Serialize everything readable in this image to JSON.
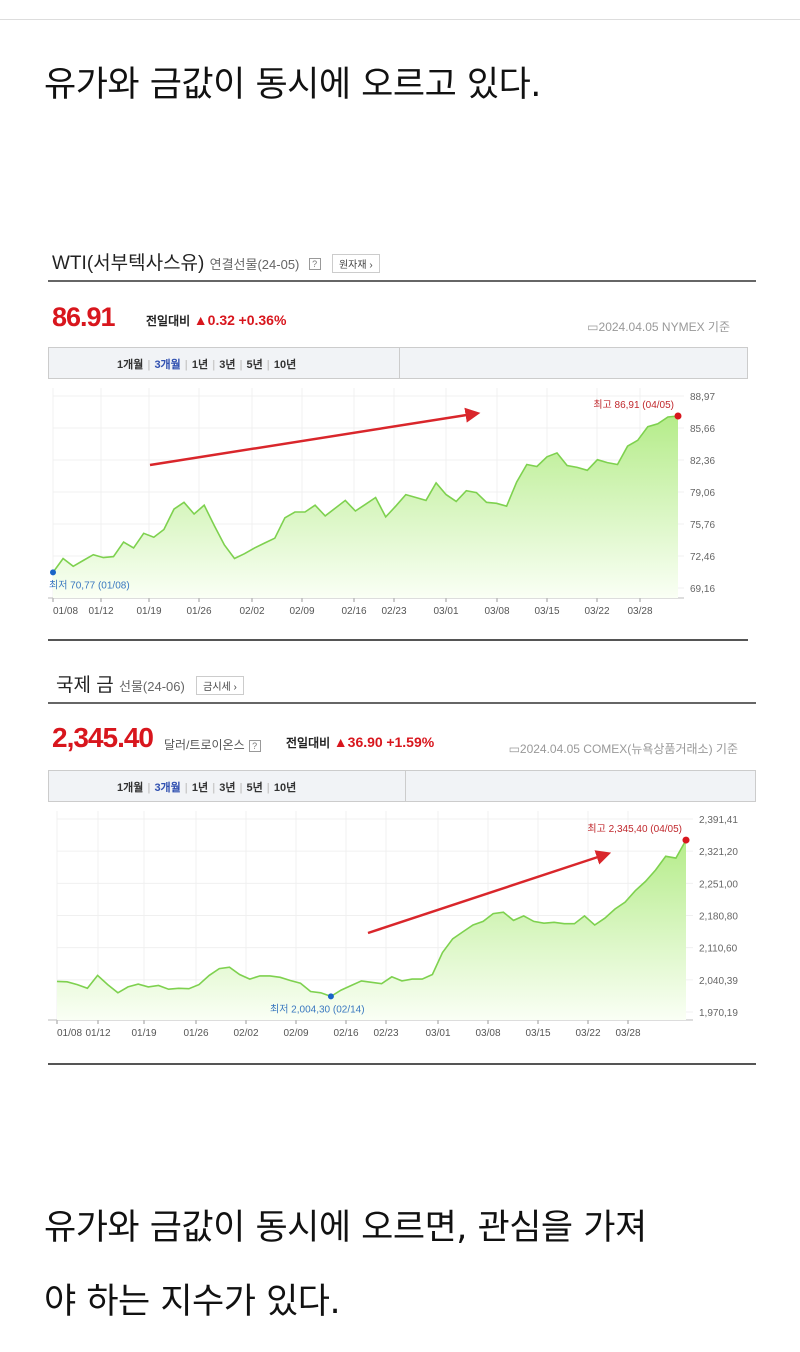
{
  "paragraphs": [
    "유가와 금값이 동시에 오르고 있다.",
    "유가와 금값이 동시에 오르면, 관심을 가져",
    "야 하는 지수가 있다."
  ],
  "wti": {
    "title": "WTI(서부텍사스유)",
    "subtitle": "연결선물(24-05)",
    "help": "?",
    "link": "원자재 ›",
    "price": "86.91",
    "change_label": "전일대비",
    "change": "▲0.32",
    "change_pct": "+0.36%",
    "date": "2024.04.05 NYMEX 기준",
    "periods": [
      "1개월",
      "3개월",
      "1년",
      "3년",
      "5년",
      "10년"
    ],
    "active_period": "3개월",
    "high_label": "최고 86,91 (04/05)",
    "low_label": "최저 70,77 (01/08)"
  },
  "gold": {
    "title": "국제 금",
    "subtitle": "선물(24-06)",
    "link": "금시세 ›",
    "unit": "달러/트로이온스",
    "help": "?",
    "price": "2,345.40",
    "change_label": "전일대비",
    "change": "▲36.90",
    "change_pct": "+1.59%",
    "date": "2024.04.05 COMEX(뉴욕상품거래소) 기준",
    "periods": [
      "1개월",
      "3개월",
      "1년",
      "3년",
      "5년",
      "10년"
    ],
    "active_period": "3개월",
    "high_label": "최고 2,345,40 (04/05)",
    "low_label": "최저 2,004,30 (02/14)"
  },
  "chart_data": [
    {
      "type": "area",
      "title": "WTI",
      "ylim": [
        69.16,
        88.97
      ],
      "yticks": [
        "88,97",
        "85,66",
        "82,36",
        "79,06",
        "75,76",
        "72,46",
        "69,16"
      ],
      "xticks": [
        "01/08",
        "01/12",
        "01/19",
        "01/26",
        "02/02",
        "02/09",
        "02/16",
        "02/23",
        "03/01",
        "03/08",
        "03/15",
        "03/22",
        "03/28"
      ],
      "values": [
        70.77,
        72.2,
        71.4,
        72.0,
        72.6,
        72.3,
        72.4,
        73.9,
        73.3,
        74.8,
        74.4,
        75.2,
        77.3,
        78.0,
        76.8,
        77.7,
        75.6,
        73.6,
        72.2,
        72.7,
        73.3,
        73.8,
        74.3,
        76.4,
        77.0,
        77.0,
        77.7,
        76.6,
        77.4,
        78.2,
        77.1,
        77.8,
        78.5,
        76.5,
        77.6,
        78.8,
        78.5,
        78.2,
        80.0,
        78.8,
        78.1,
        79.2,
        79.0,
        78.0,
        77.9,
        77.6,
        80.1,
        81.9,
        81.7,
        82.7,
        83.1,
        81.8,
        81.6,
        81.3,
        82.4,
        82.1,
        81.9,
        83.8,
        84.4,
        85.8,
        86.1,
        86.8,
        86.91
      ],
      "high": {
        "value": 86.91,
        "date": "04/05"
      },
      "low": {
        "value": 70.77,
        "date": "01/08"
      }
    },
    {
      "type": "area",
      "title": "국제 금",
      "ylim": [
        1970.19,
        2391.41
      ],
      "yticks": [
        "2,391,41",
        "2,321,20",
        "2,251,00",
        "2,180,80",
        "2,110,60",
        "2,040,39",
        "1,970,19"
      ],
      "xticks": [
        "01/08",
        "01/12",
        "01/19",
        "01/26",
        "02/02",
        "02/09",
        "02/16",
        "02/23",
        "03/01",
        "03/08",
        "03/15",
        "03/22",
        "03/28"
      ],
      "values": [
        2037,
        2036,
        2030,
        2022,
        2050,
        2030,
        2012,
        2025,
        2031,
        2025,
        2028,
        2020,
        2022,
        2021,
        2030,
        2050,
        2065,
        2068,
        2052,
        2042,
        2049,
        2049,
        2046,
        2039,
        2033,
        2015,
        2012,
        2004.3,
        2018,
        2028,
        2038,
        2035,
        2032,
        2047,
        2038,
        2042,
        2042,
        2052,
        2100,
        2130,
        2145,
        2160,
        2168,
        2185,
        2188,
        2170,
        2180,
        2168,
        2164,
        2166,
        2163,
        2163,
        2180,
        2160,
        2175,
        2195,
        2210,
        2235,
        2255,
        2280,
        2310,
        2306,
        2345.4
      ],
      "high": {
        "value": 2345.4,
        "date": "04/05"
      },
      "low": {
        "value": 2004.3,
        "date": "02/14"
      }
    }
  ],
  "colors": {
    "up": "#d8161d",
    "line": "#7ed14f",
    "fill": "#b5ec8a",
    "low": "#1a64c8",
    "arrow": "#d9262b"
  }
}
